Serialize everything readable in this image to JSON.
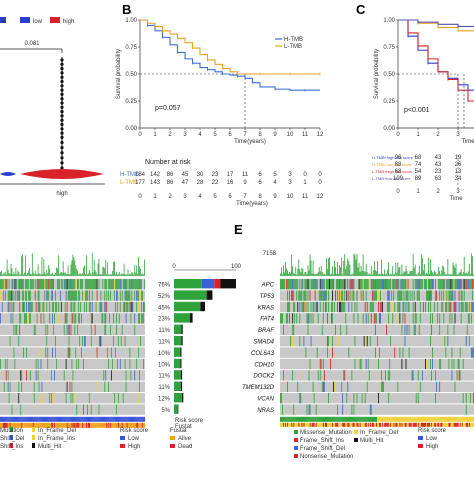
{
  "panels": {
    "B": "B",
    "C": "C",
    "E": "E"
  },
  "panel_a": {
    "legend": [
      "e",
      "low",
      "high"
    ],
    "legend_colors": [
      "#2a3fd1",
      "#2a3fd1",
      "#d8232a"
    ],
    "pvalue": "0.081",
    "xlabel": "high"
  },
  "chart_data": [
    {
      "type": "line",
      "panel": "B",
      "xlabel": "Time(years)",
      "ylabel": "Survival probability",
      "xlim": [
        0,
        12
      ],
      "ylim": [
        0,
        1
      ],
      "x_ticks": [
        "0",
        "1",
        "2",
        "3",
        "4",
        "5",
        "6",
        "7",
        "8",
        "9",
        "10",
        "11",
        "12"
      ],
      "y_ticks": [
        "0.00",
        "0.25",
        "0.50",
        "0.75",
        "1.00"
      ],
      "annotation": "p=0.057",
      "legend": [
        "H-TMB",
        "L-TMB"
      ],
      "series": [
        {
          "name": "H-TMB",
          "color": "#3a6fd6",
          "x": [
            0,
            0.5,
            1,
            1.5,
            2,
            2.5,
            3,
            3.5,
            4,
            4.5,
            5,
            5.5,
            6,
            6.5,
            7,
            7.5,
            8,
            9,
            10,
            11,
            12
          ],
          "y": [
            1.0,
            0.95,
            0.9,
            0.84,
            0.77,
            0.7,
            0.64,
            0.6,
            0.56,
            0.54,
            0.52,
            0.5,
            0.49,
            0.48,
            0.46,
            0.42,
            0.38,
            0.36,
            0.35,
            0.35,
            0.35
          ]
        },
        {
          "name": "L-TMB",
          "color": "#e8a21a",
          "x": [
            0,
            0.5,
            1,
            1.5,
            2,
            2.5,
            3,
            3.5,
            4,
            4.5,
            5,
            5.5,
            6,
            6.5,
            7,
            8,
            9,
            10,
            11,
            12
          ],
          "y": [
            1.0,
            0.97,
            0.94,
            0.9,
            0.87,
            0.83,
            0.79,
            0.74,
            0.68,
            0.63,
            0.59,
            0.55,
            0.52,
            0.5,
            0.5,
            0.5,
            0.5,
            0.5,
            0.5,
            0.5
          ]
        }
      ],
      "number_at_risk": {
        "title": "Number at risk",
        "rows": [
          {
            "label": "H-TMB",
            "values": [
              "184",
              "142",
              "86",
              "45",
              "30",
              "23",
              "17",
              "11",
              "6",
              "5",
              "3",
              "0",
              "0"
            ]
          },
          {
            "label": "L-TMB",
            "values": [
              "177",
              "143",
              "86",
              "47",
              "28",
              "22",
              "16",
              "9",
              "6",
              "4",
              "3",
              "1",
              "0"
            ]
          }
        ],
        "xlabel": "Time(years)"
      }
    },
    {
      "type": "line",
      "panel": "C",
      "ylabel": "Survival probability",
      "xlabel": "Time",
      "xlim": [
        0,
        5
      ],
      "ylim": [
        0,
        1
      ],
      "x_ticks": [
        "0",
        "1",
        "2",
        "3",
        "4",
        "5"
      ],
      "y_ticks": [
        "0.00",
        "0.25",
        "0.50",
        "0.75",
        "1.00"
      ],
      "annotation": "p<0.001",
      "series": [
        {
          "name": "H-TMB+high risk score",
          "color": "#2a3fd1",
          "x": [
            0,
            0.5,
            1,
            1.5,
            2,
            2.5,
            3,
            3.5,
            4
          ],
          "y": [
            1.0,
            0.85,
            0.72,
            0.6,
            0.52,
            0.46,
            0.4,
            0.35,
            0.3
          ]
        },
        {
          "name": "H-TMB+low risk score",
          "color": "#e8a21a",
          "x": [
            0,
            1,
            2,
            3,
            4,
            5
          ],
          "y": [
            1.0,
            0.97,
            0.93,
            0.9,
            0.88,
            0.86
          ]
        },
        {
          "name": "L-TMB+high risk score",
          "color": "#d8232a",
          "x": [
            0,
            0.5,
            1,
            1.5,
            2,
            2.5,
            3,
            3.5,
            4,
            4.5
          ],
          "y": [
            1.0,
            0.88,
            0.76,
            0.64,
            0.52,
            0.45,
            0.35,
            0.25,
            0.15,
            0.08
          ]
        },
        {
          "name": "L-TMB+low risk score",
          "color": "#5b4fb0",
          "x": [
            0,
            1,
            2,
            3,
            4,
            5
          ],
          "y": [
            1.0,
            0.98,
            0.96,
            0.94,
            0.92,
            0.9
          ]
        }
      ],
      "number_at_risk": {
        "rows": [
          {
            "label": "H-TMB+high risk score",
            "values": [
              "96",
              "68",
              "43",
              "19",
              "12"
            ]
          },
          {
            "label": "H-TMB+low risk score",
            "values": [
              "88",
              "74",
              "43",
              "26",
              "18"
            ]
          },
          {
            "label": "L-TMB+high risk score",
            "values": [
              "68",
              "54",
              "23",
              "13",
              "6"
            ]
          },
          {
            "label": "L-TMB+low risk score",
            "values": [
              "109",
              "89",
              "63",
              "34",
              "22"
            ]
          }
        ],
        "xlabel": "Time"
      }
    }
  ],
  "oncoplot_left": {
    "bar_axis": [
      "0",
      "100"
    ],
    "rows": [
      {
        "gene": "APC",
        "pct": "76%",
        "bar": 1.0
      },
      {
        "gene": "TP53",
        "pct": "52%",
        "bar": 0.62
      },
      {
        "gene": "KRAS",
        "pct": "45%",
        "bar": 0.5
      },
      {
        "gene": "FAT4",
        "pct": "23%",
        "bar": 0.3
      },
      {
        "gene": "BRAF",
        "pct": "11%",
        "bar": 0.14
      },
      {
        "gene": "SMAD4",
        "pct": "11%",
        "bar": 0.14
      },
      {
        "gene": "COL6A3",
        "pct": "10%",
        "bar": 0.12
      },
      {
        "gene": "CDH10",
        "pct": "10%",
        "bar": 0.12
      },
      {
        "gene": "DOCK2",
        "pct": "11%",
        "bar": 0.13
      },
      {
        "gene": "TMEM132D",
        "pct": "11%",
        "bar": 0.13
      },
      {
        "gene": "VCAN",
        "pct": "12%",
        "bar": 0.15
      },
      {
        "gene": "NRAS",
        "pct": "5%",
        "bar": 0.07
      }
    ],
    "annotation_labels": [
      "Risk score",
      "Fustat"
    ],
    "legend_mut": [
      "Mutation",
      "In_Frame_Del",
      "Shift_Del",
      "In_Frame_Ins",
      "Shift_Ins",
      "Multi_Hit"
    ],
    "legend_risk_title": "Risk score",
    "legend_risk": [
      "Low",
      "High"
    ],
    "legend_fustat_title": "Fustat",
    "legend_fustat": [
      "Alive",
      "Dead"
    ]
  },
  "oncoplot_right": {
    "top_axis": "7158",
    "genes": [
      "APC",
      "TP53",
      "KRAS",
      "FAT4",
      "BRAF",
      "SMAD4",
      "COL6A3",
      "CDH10",
      "DOCK2",
      "TMEM132D",
      "VCAN",
      "NRAS"
    ],
    "legend_mut": [
      "Missense_Mutation",
      "In_Frame_Del",
      "Frame_Shift_Ins",
      "Multi_Hit",
      "Frame_Shift_Del",
      "Nonsense_Mutation"
    ],
    "legend_risk_title": "Risk score",
    "legend_risk": [
      "Low",
      "High"
    ]
  },
  "colors": {
    "missense": "#2fa33a",
    "frameshift_del": "#3a60d6",
    "frameshift_ins": "#d8232a",
    "inframe": "#f0d23a",
    "multi": "#111111",
    "nonsense": "#d8232a",
    "empty": "#c8c8c8",
    "risk_low": "#3a55d6",
    "risk_high": "#d8232a",
    "alive": "#f0a31a",
    "dead": "#d8232a",
    "green_risk": "#2fa33a",
    "yellow_risk": "#f0d23a"
  }
}
